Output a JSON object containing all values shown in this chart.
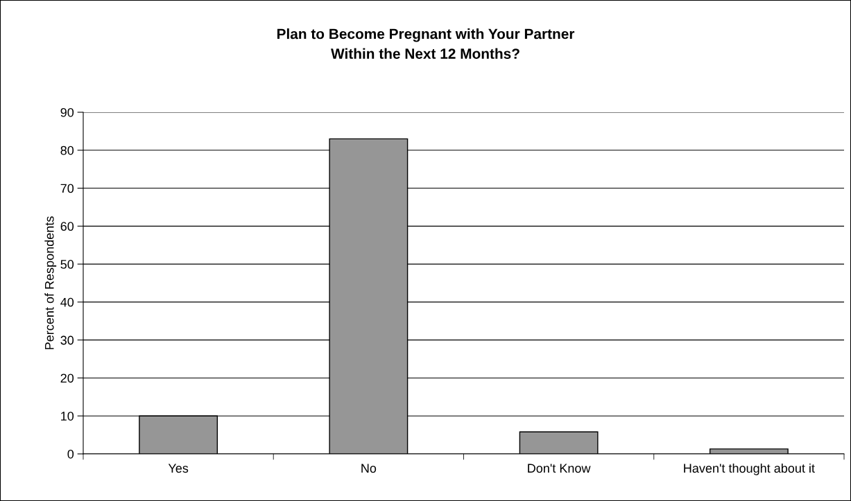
{
  "chart_data": {
    "type": "bar",
    "title": "Plan to Become Pregnant with Your Partner\nWithin the Next 12 Months?",
    "ylabel": "Percent of Respondents",
    "categories": [
      "Yes",
      "No",
      "Don't Know",
      "Haven't thought about it"
    ],
    "values": [
      10,
      83,
      5.8,
      1.3
    ],
    "color": "#969696",
    "ylim": [
      0,
      90
    ],
    "yticks": [
      0,
      10,
      20,
      30,
      40,
      50,
      60,
      70,
      80,
      90
    ],
    "grid": "y",
    "legend": false
  }
}
